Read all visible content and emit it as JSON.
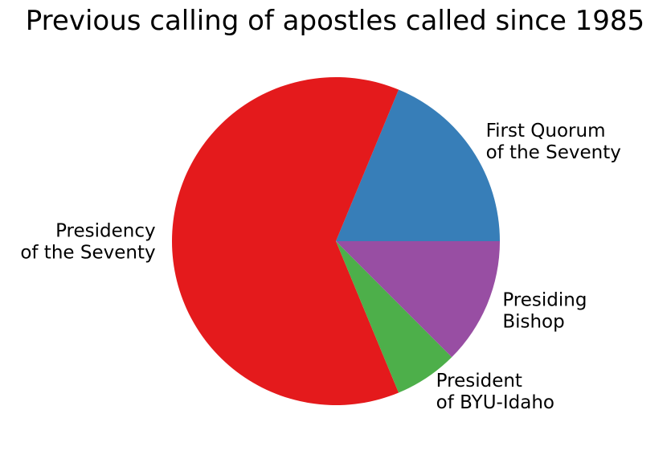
{
  "chart_data": {
    "type": "pie",
    "title": "Previous calling of apostles called since 1985",
    "start_angle_deg": 0,
    "direction": "counterclockwise",
    "slices": [
      {
        "label_lines": [
          "First Quorum",
          "of the Seventy"
        ],
        "value": 3,
        "color": "#377eb8"
      },
      {
        "label_lines": [
          "Presidency",
          "of the Seventy"
        ],
        "value": 10,
        "color": "#e41a1c"
      },
      {
        "label_lines": [
          "President",
          "of BYU-Idaho"
        ],
        "value": 1,
        "color": "#4daf4a"
      },
      {
        "label_lines": [
          "Presiding",
          "Bishop"
        ],
        "value": 2,
        "color": "#984ea3"
      }
    ]
  }
}
